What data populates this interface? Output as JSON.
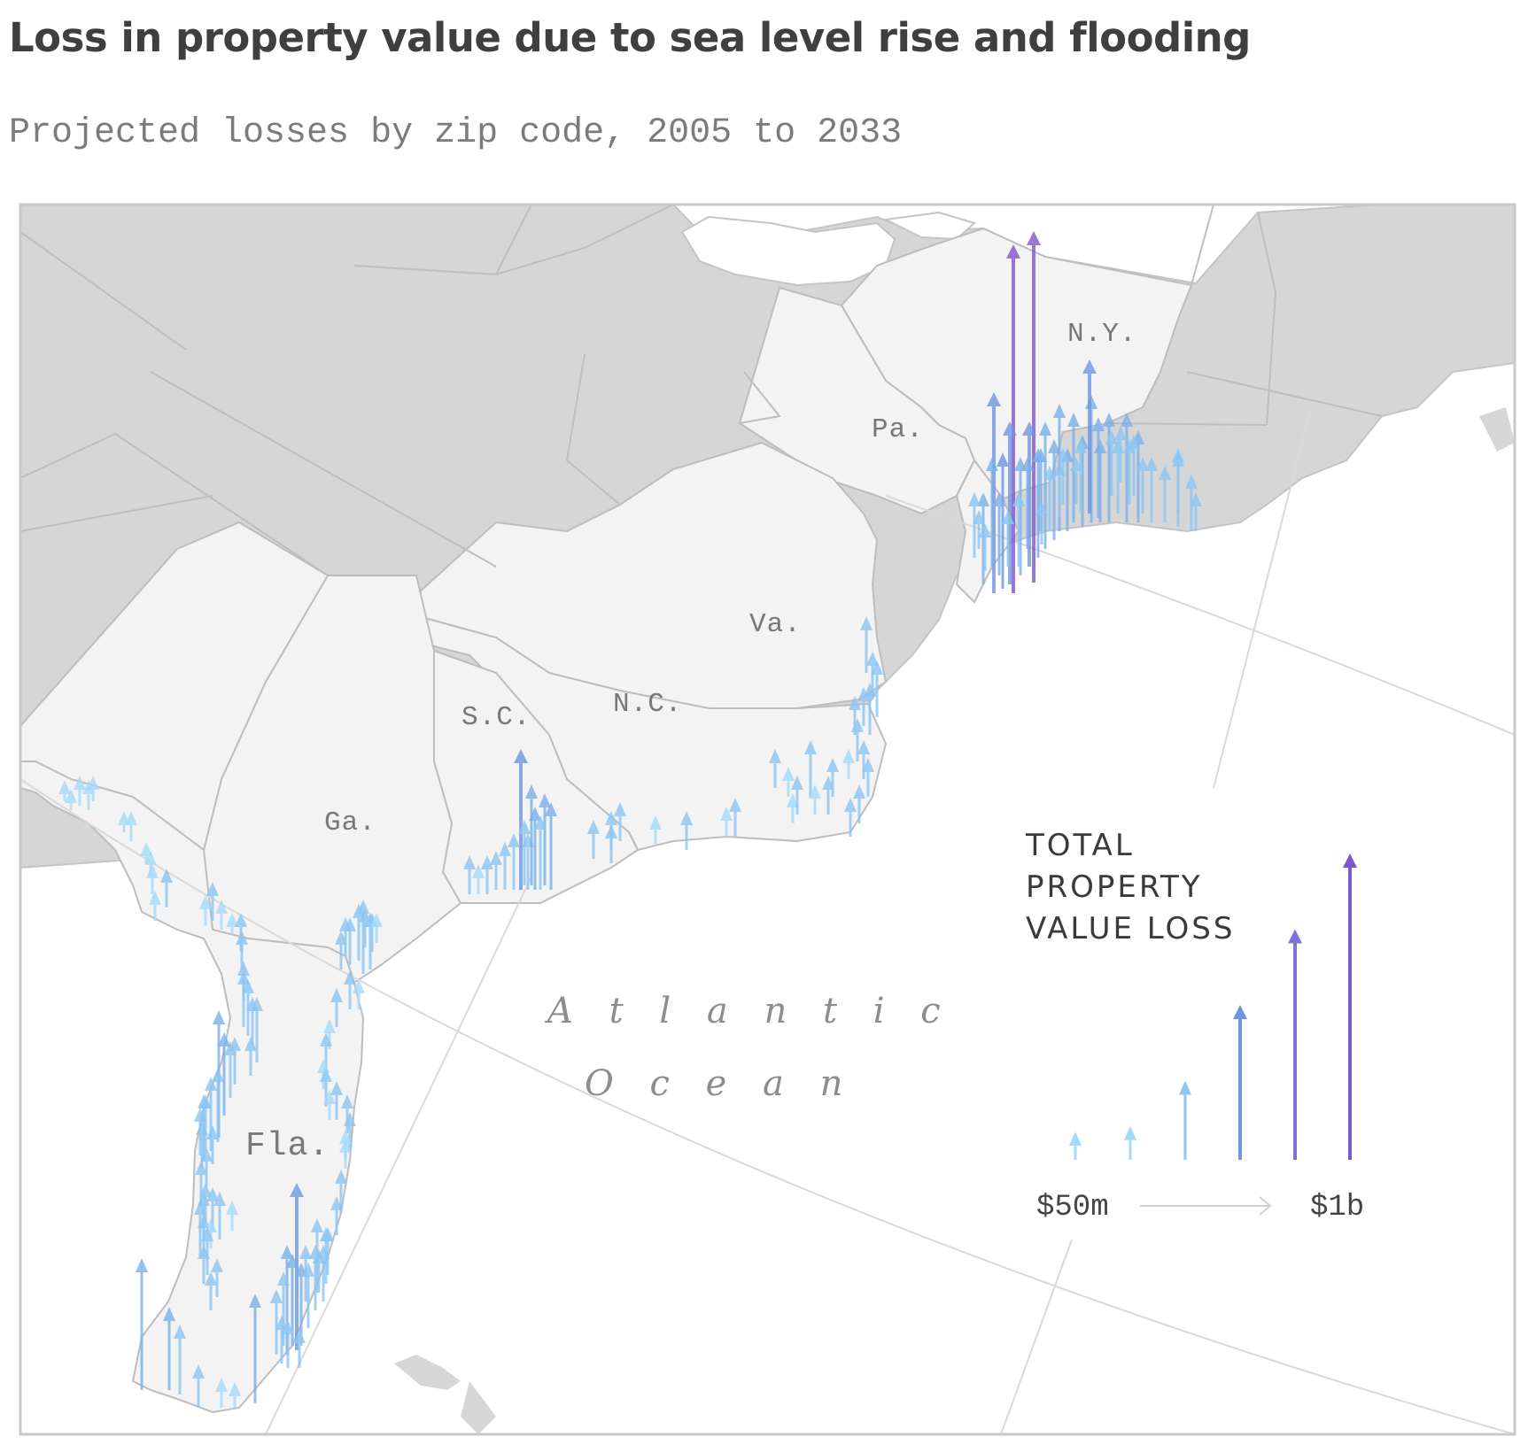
{
  "title": "Loss in property value due to sea level rise and flooding",
  "subtitle": "Projected losses by zip code, 2005 to 2033",
  "colors": {
    "land_highlight": "#f3f3f3",
    "land_other": "#d6d6d6",
    "border": "#bdbdbd",
    "water": "#ffffff",
    "spike_scale": [
      "#a6dafb",
      "#8cc6f3",
      "#7ab0ea",
      "#7096e0",
      "#7f72d6",
      "#7f56d0"
    ]
  },
  "states": [
    {
      "label": "N.Y."
    },
    {
      "label": "Pa."
    },
    {
      "label": "Va."
    },
    {
      "label": "N.C."
    },
    {
      "label": "S.C."
    },
    {
      "label": "Ga."
    },
    {
      "label": "Fla."
    }
  ],
  "ocean_label": {
    "line1": "A t l a n t i c",
    "line2": "O c e a n"
  },
  "legend": {
    "title_lines": [
      "TOTAL",
      "PROPERTY",
      "VALUE LOSS"
    ],
    "min_label": "$50m",
    "max_label": "$1b",
    "steps": [
      0.05,
      0.1,
      0.25,
      0.5,
      0.75,
      1.0
    ]
  }
}
